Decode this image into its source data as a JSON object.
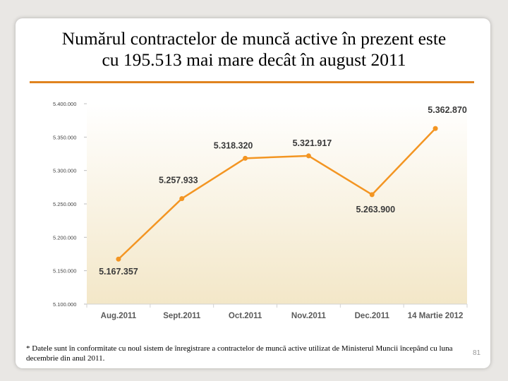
{
  "slide": {
    "title_line1": "Numărul contractelor de muncă active în prezent este",
    "title_line2": "cu 195.513 mai mare decât în august 2011",
    "footnote": "* Datele sunt în conformitate cu noul sistem de înregistrare a contractelor de muncă active utilizat de Ministerul Muncii începând cu luna decembrie din anul 2011.",
    "page_number": "81",
    "accent_color": "#e0841f"
  },
  "chart_data": {
    "type": "line",
    "categories": [
      "Aug.2011",
      "Sept.2011",
      "Oct.2011",
      "Nov.2011",
      "Dec.2011",
      "14 Martie 2012"
    ],
    "series": [
      {
        "values": [
          5167357,
          5257933,
          5318320,
          5321917,
          5263900,
          5362870
        ],
        "data_labels": [
          "5.167.357",
          "5.257.933",
          "5.318.320",
          "5.321.917",
          "5.263.900",
          "5.362.870"
        ],
        "color": "#f39522"
      }
    ],
    "ylim": [
      5100000,
      5400000
    ],
    "y_ticks": [
      5100000,
      5150000,
      5200000,
      5250000,
      5300000,
      5350000,
      5400000
    ],
    "y_tick_labels": [
      "5.100.000",
      "5.150.000",
      "5.200.000",
      "5.250.000",
      "5.300.000",
      "5.350.000",
      "5.400.000"
    ],
    "plot_background_gradient": [
      "#ffffff",
      "#f3e7c8"
    ],
    "grid": false,
    "legend": "none"
  }
}
